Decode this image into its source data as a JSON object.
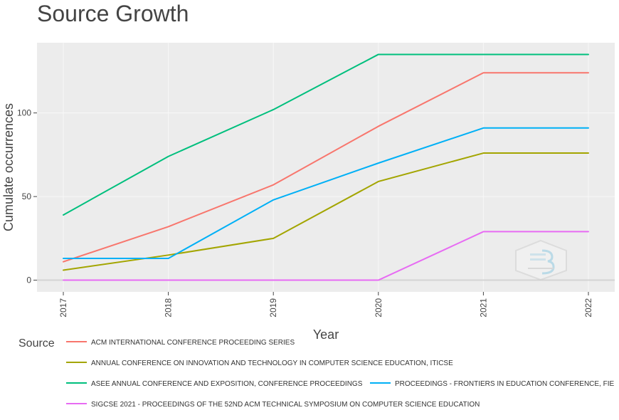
{
  "colors": {
    "panel": "#ececec",
    "grid": "#f8f8f8",
    "zero_line": "#d4d4d4",
    "text": "#444444"
  },
  "chart_data": {
    "type": "line",
    "title": "Source Growth",
    "xlabel": "Year",
    "ylabel": "Cumulate occurrences",
    "x": [
      2017,
      2018,
      2019,
      2020,
      2021,
      2022
    ],
    "x_tick_labels": [
      "2017",
      "2018",
      "2019",
      "2020",
      "2021",
      "2022"
    ],
    "y_ticks": [
      0,
      50,
      100
    ],
    "y_tick_labels": [
      "0",
      "50",
      "100"
    ],
    "ylim": [
      -7,
      142
    ],
    "grid": true,
    "legend": {
      "title": "Source",
      "placement": "bottom"
    },
    "series": [
      {
        "name": "ACM INTERNATIONAL CONFERENCE PROCEEDING SERIES",
        "color": "#f8766d",
        "values": [
          11,
          32,
          57,
          92,
          124,
          124
        ]
      },
      {
        "name": "ANNUAL CONFERENCE ON INNOVATION AND TECHNOLOGY IN COMPUTER SCIENCE EDUCATION, ITICSE",
        "color": "#a3a500",
        "values": [
          6,
          15,
          25,
          59,
          76,
          76
        ]
      },
      {
        "name": "ASEE ANNUAL CONFERENCE AND EXPOSITION, CONFERENCE PROCEEDINGS",
        "color": "#00bf7d",
        "values": [
          39,
          74,
          102,
          135,
          135,
          135
        ]
      },
      {
        "name": "PROCEEDINGS - FRONTIERS IN EDUCATION CONFERENCE, FIE",
        "color": "#00b0f6",
        "values": [
          13,
          13,
          48,
          70,
          91,
          91
        ]
      },
      {
        "name": "SIGCSE 2021 - PROCEEDINGS OF THE 52ND ACM TECHNICAL SYMPOSIUM ON COMPUTER SCIENCE EDUCATION",
        "color": "#e76bf3",
        "values": [
          0,
          0,
          0,
          0,
          29,
          29
        ]
      }
    ]
  }
}
